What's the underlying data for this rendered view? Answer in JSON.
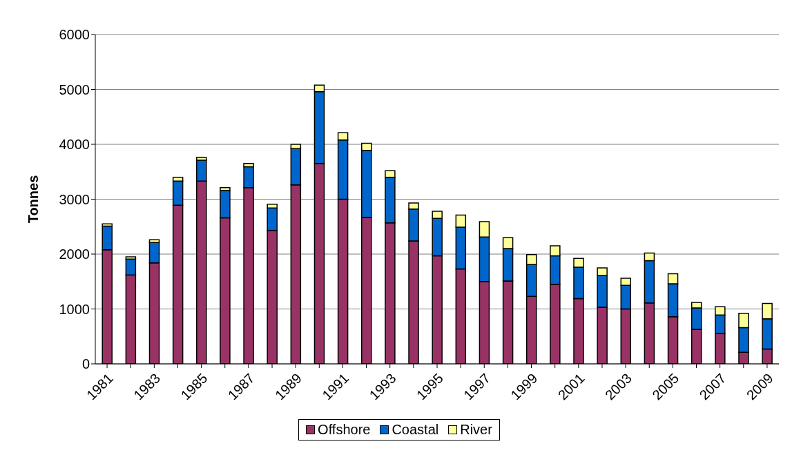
{
  "chart_data": {
    "type": "bar",
    "stacked": true,
    "ylabel": "Tonnes",
    "categories": [
      "1981",
      null,
      "1983",
      null,
      "1985",
      null,
      "1987",
      null,
      "1989",
      null,
      "1991",
      null,
      "1993",
      null,
      "1995",
      null,
      "1997",
      null,
      "1999",
      null,
      "2001",
      null,
      "2003",
      null,
      "2005",
      null,
      "2007",
      null,
      "2009"
    ],
    "series": [
      {
        "name": "Offshore",
        "color": "#993366",
        "values": [
          2080,
          1620,
          1840,
          2890,
          3330,
          2660,
          3210,
          2430,
          3260,
          3650,
          3000,
          2670,
          2570,
          2240,
          1970,
          1730,
          1500,
          1510,
          1230,
          1450,
          1190,
          1030,
          1000,
          1110,
          860,
          630,
          550,
          210,
          270
        ]
      },
      {
        "name": "Coastal",
        "color": "#0066cc",
        "values": [
          430,
          290,
          370,
          440,
          380,
          500,
          380,
          410,
          660,
          1310,
          1080,
          1220,
          830,
          580,
          680,
          760,
          810,
          590,
          580,
          520,
          570,
          580,
          430,
          770,
          600,
          390,
          340,
          450,
          550
        ]
      },
      {
        "name": "River",
        "color": "#ffff99",
        "values": [
          40,
          40,
          50,
          70,
          50,
          50,
          60,
          70,
          80,
          120,
          130,
          130,
          120,
          110,
          130,
          220,
          280,
          200,
          180,
          180,
          160,
          140,
          130,
          140,
          180,
          100,
          150,
          260,
          280
        ]
      }
    ],
    "ylim": [
      0,
      6000
    ],
    "yticks": [
      0,
      1000,
      2000,
      3000,
      4000,
      5000,
      6000
    ],
    "grid": "y",
    "legend": "bottom"
  }
}
